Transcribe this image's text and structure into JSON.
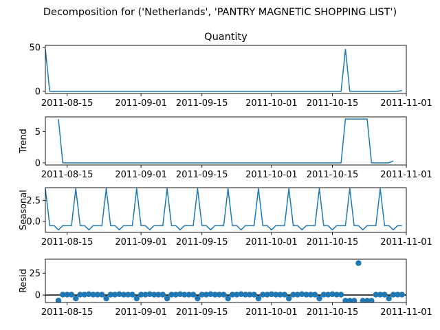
{
  "figure": {
    "suptitle": "Decomposition for ('Netherlands', 'PANTRY MAGNETIC  SHOPPING LIST')"
  },
  "chart_data": [
    {
      "type": "line",
      "title": "Quantity",
      "ylabel": "",
      "ylim": [
        -2.4,
        52.4
      ],
      "yticks": [
        0,
        50
      ],
      "xlim": [
        "2011-08-10",
        "2011-11-01"
      ],
      "xticks": [
        "2011-08-15",
        "2011-09-01",
        "2011-09-15",
        "2011-10-01",
        "2011-10-15",
        "2011-11-01"
      ],
      "x_start": "2011-08-10",
      "x_step_days": 1,
      "color": "#1f77b4",
      "values": [
        48,
        0,
        0,
        0,
        0,
        0,
        0,
        0,
        0,
        0,
        0,
        0,
        0,
        0,
        0,
        0,
        0,
        0,
        0,
        0,
        0,
        0,
        0,
        0,
        0,
        0,
        0,
        0,
        0,
        0,
        0,
        0,
        0,
        0,
        0,
        0,
        0,
        0,
        0,
        0,
        0,
        0,
        0,
        0,
        0,
        0,
        0,
        0,
        0,
        0,
        0,
        0,
        0,
        0,
        0,
        0,
        0,
        0,
        0,
        0,
        0,
        0,
        0,
        0,
        0,
        0,
        0,
        0,
        0,
        48,
        0,
        0,
        0,
        0,
        0,
        0,
        0,
        0,
        0,
        0,
        0,
        0,
        1
      ]
    },
    {
      "type": "line",
      "title": "",
      "ylabel": "Trend",
      "ylim": [
        -0.35,
        7.35
      ],
      "yticks": [
        0,
        5
      ],
      "xlim": [
        "2011-08-10",
        "2011-11-01"
      ],
      "xticks": [
        "2011-08-15",
        "2011-09-01",
        "2011-09-15",
        "2011-10-01",
        "2011-10-15",
        "2011-11-01"
      ],
      "x_start": "2011-08-10",
      "x_step_days": 1,
      "color": "#1f77b4",
      "values": [
        null,
        null,
        null,
        7,
        0,
        0,
        0,
        0,
        0,
        0,
        0,
        0,
        0,
        0,
        0,
        0,
        0,
        0,
        0,
        0,
        0,
        0,
        0,
        0,
        0,
        0,
        0,
        0,
        0,
        0,
        0,
        0,
        0,
        0,
        0,
        0,
        0,
        0,
        0,
        0,
        0,
        0,
        0,
        0,
        0,
        0,
        0,
        0,
        0,
        0,
        0,
        0,
        0,
        0,
        0,
        0,
        0,
        0,
        0,
        0,
        0,
        0,
        0,
        0,
        0,
        0,
        0,
        0,
        0,
        7,
        7,
        7,
        7,
        7,
        7,
        0,
        0,
        0,
        0,
        0,
        0.3,
        null,
        null
      ]
    },
    {
      "type": "line",
      "title": "",
      "ylabel": "Seasonal",
      "ylim": [
        -1.3,
        4.0
      ],
      "yticks": [
        0.0,
        2.5
      ],
      "ytick_labels": [
        "0.0",
        "2.5"
      ],
      "xlim": [
        "2011-08-10",
        "2011-11-01"
      ],
      "xticks": [
        "2011-08-15",
        "2011-09-01",
        "2011-09-15",
        "2011-10-01",
        "2011-10-15",
        "2011-11-01"
      ],
      "x_start": "2011-08-10",
      "x_step_days": 1,
      "color": "#1f77b4",
      "values": [
        3.9,
        -0.5,
        -0.5,
        -1.0,
        -0.5,
        -0.5,
        -0.5,
        3.9,
        -0.5,
        -0.5,
        -1.0,
        -0.5,
        -0.5,
        -0.5,
        3.9,
        -0.5,
        -0.5,
        -1.0,
        -0.5,
        -0.5,
        -0.5,
        3.9,
        -0.5,
        -0.5,
        -1.0,
        -0.5,
        -0.5,
        -0.5,
        3.9,
        -0.5,
        -0.5,
        -1.0,
        -0.5,
        -0.5,
        -0.5,
        3.9,
        -0.5,
        -0.5,
        -1.0,
        -0.5,
        -0.5,
        -0.5,
        3.9,
        -0.5,
        -0.5,
        -1.0,
        -0.5,
        -0.5,
        -0.5,
        3.9,
        -0.5,
        -0.5,
        -1.0,
        -0.5,
        -0.5,
        -0.5,
        3.9,
        -0.5,
        -0.5,
        -1.0,
        -0.5,
        -0.5,
        -0.5,
        3.9,
        -0.5,
        -0.5,
        -1.0,
        -0.5,
        -0.5,
        -0.5,
        3.9,
        -0.5,
        -0.5,
        -1.0,
        -0.5,
        -0.5,
        -0.5,
        3.9,
        -0.5,
        -0.5,
        -1.0,
        -0.5,
        -0.5
      ]
    },
    {
      "type": "scatter",
      "title": "",
      "ylabel": "Resid",
      "ylim": [
        -8.5,
        41.0
      ],
      "yticks": [
        0,
        25
      ],
      "xlim": [
        "2011-08-10",
        "2011-11-01"
      ],
      "xticks": [
        "2011-08-15",
        "2011-09-01",
        "2011-09-15",
        "2011-10-01",
        "2011-10-15",
        "2011-11-01"
      ],
      "x_start": "2011-08-10",
      "x_step_days": 1,
      "zero_line": true,
      "color": "#1f77b4",
      "values": [
        null,
        null,
        null,
        -6.3,
        0.5,
        0.5,
        0.5,
        -3.9,
        0.5,
        0.5,
        1.0,
        0.5,
        0.5,
        0.5,
        -3.9,
        0.5,
        0.5,
        1.0,
        0.5,
        0.5,
        0.5,
        -3.9,
        0.5,
        0.5,
        1.0,
        0.5,
        0.5,
        0.5,
        -3.9,
        0.5,
        0.5,
        1.0,
        0.5,
        0.5,
        0.5,
        -3.9,
        0.5,
        0.5,
        1.0,
        0.5,
        0.5,
        0.5,
        -3.9,
        0.5,
        0.5,
        1.0,
        0.5,
        0.5,
        0.5,
        -3.9,
        0.5,
        0.5,
        1.0,
        0.5,
        0.5,
        0.5,
        -3.9,
        0.5,
        0.5,
        1.0,
        0.5,
        0.5,
        0.5,
        -3.9,
        0.5,
        0.5,
        1.0,
        0.5,
        0.5,
        -6.5,
        -6.5,
        -6.5,
        36.5,
        -6.5,
        -6.5,
        -6.5,
        0.5,
        0.5,
        0.5,
        -3.9,
        0.5,
        0.5,
        0.5,
        null,
        null
      ]
    }
  ]
}
